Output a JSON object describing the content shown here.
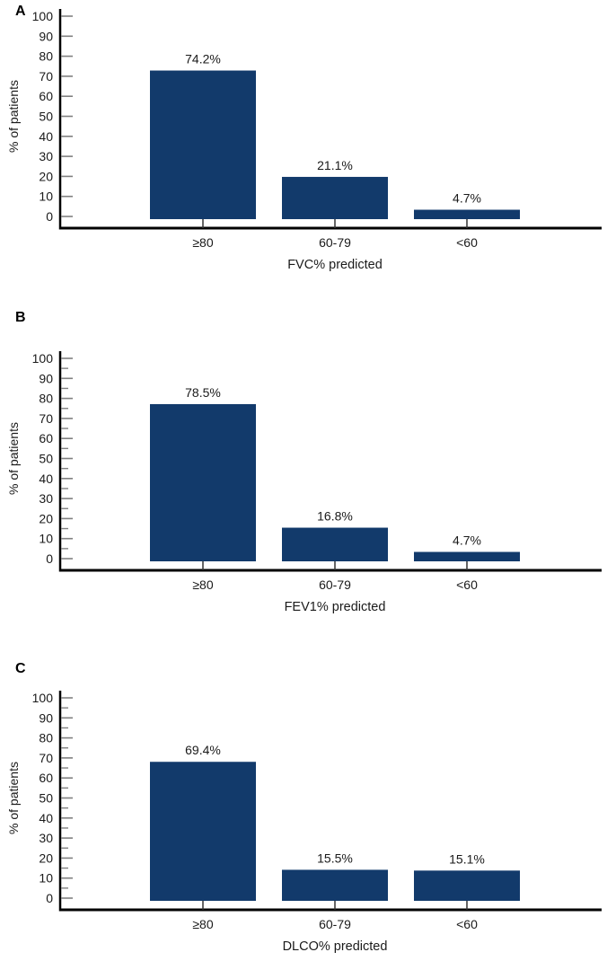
{
  "figure": {
    "background": "#ffffff",
    "bar_color": "#123a6b",
    "axis_color": "#000000",
    "tick_color": "#808080",
    "connector_color": "#333333",
    "text_color": "#1a1a1a"
  },
  "chart_data": [
    {
      "type": "bar",
      "panel": "A",
      "categories": [
        "≥80",
        "60-79",
        "<60"
      ],
      "values": [
        74.2,
        21.1,
        4.7
      ],
      "bar_labels": [
        "74.2%",
        "21.1%",
        "4.7%"
      ],
      "xlabel": "FVC% predicted",
      "ylabel": "% of patients",
      "ylim": [
        0,
        100
      ],
      "yticks": [
        0,
        10,
        20,
        30,
        40,
        50,
        60,
        70,
        80,
        90,
        100
      ],
      "minor_ticks": false,
      "grid": false,
      "legend": "none"
    },
    {
      "type": "bar",
      "panel": "B",
      "categories": [
        "≥80",
        "60-79",
        "<60"
      ],
      "values": [
        78.5,
        16.8,
        4.7
      ],
      "bar_labels": [
        "78.5%",
        "16.8%",
        "4.7%"
      ],
      "xlabel": "FEV1% predicted",
      "ylabel": "% of patients",
      "ylim": [
        0,
        100
      ],
      "yticks": [
        0,
        10,
        20,
        30,
        40,
        50,
        60,
        70,
        80,
        90,
        100
      ],
      "minor_ticks": true,
      "grid": false,
      "legend": "none"
    },
    {
      "type": "bar",
      "panel": "C",
      "categories": [
        "≥80",
        "60-79",
        "<60"
      ],
      "values": [
        69.4,
        15.5,
        15.1
      ],
      "bar_labels": [
        "69.4%",
        "15.5%",
        "15.1%"
      ],
      "xlabel": "DLCO% predicted",
      "ylabel": "% of patients",
      "ylim": [
        0,
        100
      ],
      "yticks": [
        0,
        10,
        20,
        30,
        40,
        50,
        60,
        70,
        80,
        90,
        100
      ],
      "minor_ticks": true,
      "grid": false,
      "legend": "none"
    }
  ]
}
